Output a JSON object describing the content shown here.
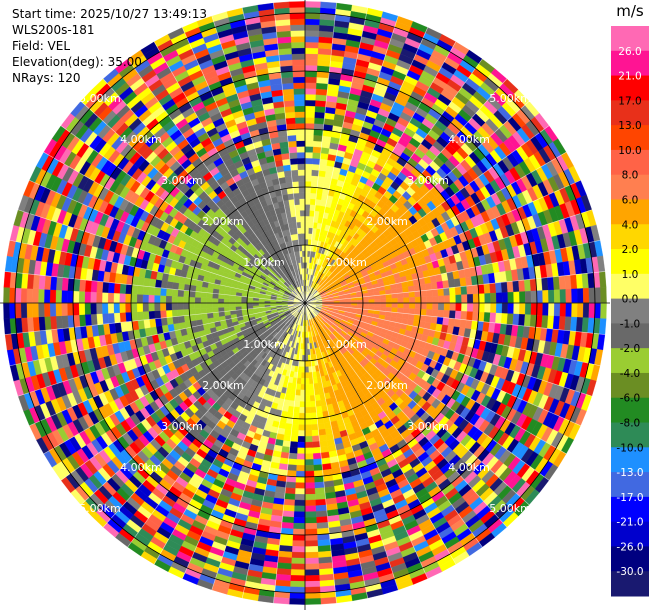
{
  "header": {
    "start_time": "Start time: 2025/10/27 13:49:13",
    "station": "WLS200s-181",
    "field": "Field: VEL",
    "elevation": "Elevation(deg): 35.00",
    "nrays": "NRays: 120"
  },
  "chart_data": {
    "type": "heatmap",
    "projection": "polar-ppi",
    "field": "VEL",
    "unit": "m/s",
    "nrays": 120,
    "elevation_deg": 35.0,
    "max_range_km": 5.2,
    "range_rings_km": [
      1.0,
      2.0,
      3.0,
      4.0,
      5.0
    ],
    "ring_labels": [
      "1.00km",
      "2.00km",
      "3.00km",
      "4.00km",
      "5.00km"
    ],
    "colorbar_ticks": [
      "26.0",
      "21.0",
      "17.0",
      "13.0",
      "10.0",
      "8.0",
      "6.0",
      "4.0",
      "2.0",
      "1.0",
      "0.0",
      "-1.0",
      "-2.0",
      "-4.0",
      "-6.0",
      "-8.0",
      "-10.0",
      "-13.0",
      "-17.0",
      "-21.0",
      "-26.0",
      "-30.0"
    ],
    "colorbar_colors": [
      "#ff69b4",
      "#ff1493",
      "#ff0000",
      "#e8301a",
      "#ff4500",
      "#ff6347",
      "#ff7f50",
      "#ffa500",
      "#ffd700",
      "#ffff00",
      "#ffff66",
      "#808080",
      "#696969",
      "#9acd32",
      "#6b8e23",
      "#228b22",
      "#2e8b57",
      "#1e90ff",
      "#4169e1",
      "#0000ff",
      "#0000cd",
      "#000080",
      "#191970"
    ],
    "pattern_description": "near range: radial velocity positive to east (yellow-orange-red), negative to west (green-blue); far range: noise"
  }
}
